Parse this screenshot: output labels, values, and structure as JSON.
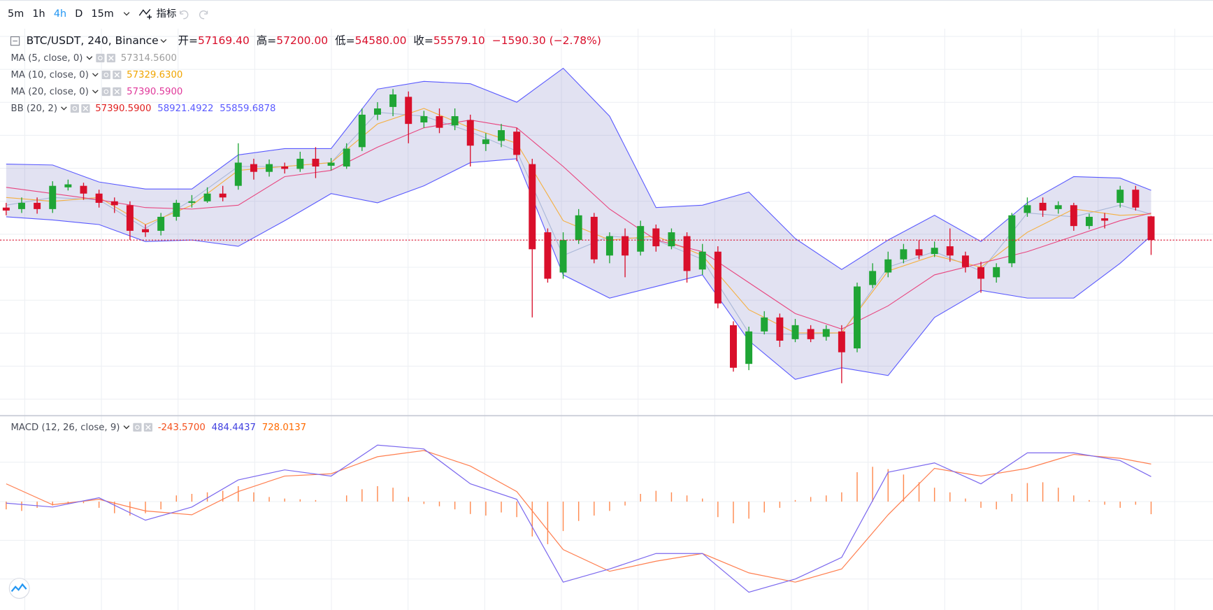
{
  "toolbar": {
    "intervals": [
      "5m",
      "1h",
      "4h",
      "D",
      "15m"
    ],
    "active_index": 2,
    "indicators": "指标"
  },
  "chart_data": [
    {
      "type": "candlestick",
      "title": "BTC/USDT, 240, Binance",
      "ohlc_legend": [
        {
          "label": "开=",
          "value": "57169.40"
        },
        {
          "label": "高=",
          "value": "57200.00"
        },
        {
          "label": "低=",
          "value": "54580.00"
        },
        {
          "label": "收=",
          "value": "55579.10"
        }
      ],
      "change": "−1590.30 (−2.78%)",
      "up_color": "#1fa535",
      "down_color": "#d90f2b",
      "last_price_line": true,
      "ylim": [
        43780,
        69780
      ],
      "open": [
        57760,
        57660,
        58080,
        57660,
        59120,
        59220,
        58700,
        58180,
        57920,
        56310,
        56200,
        57140,
        58080,
        58180,
        58700,
        59220,
        60680,
        60160,
        60520,
        60360,
        61040,
        60570,
        60520,
        61820,
        64000,
        64520,
        65200,
        63480,
        63900,
        63280,
        63640,
        62030,
        62240,
        62860,
        60680,
        56100,
        53400,
        55580,
        57140,
        54540,
        55840,
        54800,
        56360,
        55160,
        55840,
        53600,
        54800,
        49860,
        47260,
        49440,
        50380,
        48920,
        49600,
        49080,
        49440,
        48300,
        52560,
        53400,
        54280,
        54960,
        54640,
        55160,
        54540,
        53760,
        53080,
        54020,
        57400,
        58080,
        57660,
        57920,
        56520,
        57040,
        58080,
        58960,
        57169.4
      ],
      "high": [
        58080,
        58440,
        58440,
        59530,
        59640,
        59430,
        58960,
        58440,
        58180,
        56620,
        57400,
        58280,
        58600,
        59120,
        59220,
        62080,
        61040,
        60990,
        60780,
        61510,
        61820,
        61090,
        62080,
        64420,
        64840,
        65720,
        65560,
        64260,
        64420,
        64420,
        64000,
        62760,
        63380,
        63120,
        61040,
        56360,
        56100,
        57660,
        57400,
        56100,
        56360,
        56880,
        56620,
        56360,
        56100,
        55320,
        55160,
        50120,
        49760,
        50800,
        50640,
        50280,
        49860,
        49860,
        49860,
        52720,
        54020,
        54800,
        55320,
        55580,
        55480,
        56360,
        54800,
        54120,
        54020,
        57400,
        58440,
        58440,
        58180,
        58080,
        57350,
        57400,
        59220,
        59220,
        57200
      ],
      "low": [
        57240,
        57400,
        57350,
        57400,
        58910,
        58280,
        57760,
        57400,
        55580,
        55790,
        55890,
        56880,
        57760,
        58080,
        58180,
        58960,
        59640,
        59840,
        60050,
        60160,
        59740,
        60260,
        60360,
        61560,
        63640,
        63900,
        62080,
        63120,
        62760,
        62960,
        60520,
        61560,
        61820,
        60880,
        50380,
        52720,
        52980,
        55320,
        54020,
        54020,
        53080,
        54540,
        54800,
        54960,
        52720,
        53240,
        51000,
        46740,
        46840,
        49240,
        48400,
        48720,
        48720,
        48820,
        45960,
        48040,
        52360,
        53080,
        54020,
        54280,
        54440,
        54120,
        53400,
        52040,
        52720,
        53760,
        57140,
        57140,
        57350,
        56200,
        56310,
        56360,
        57760,
        57560,
        54580
      ],
      "close": [
        57560,
        58080,
        57660,
        59220,
        59320,
        58700,
        58080,
        57920,
        56200,
        56100,
        57140,
        58080,
        58180,
        58700,
        58440,
        60780,
        60160,
        60680,
        60360,
        61040,
        60520,
        60780,
        61720,
        64000,
        64420,
        65360,
        63380,
        63900,
        63120,
        63900,
        61920,
        62340,
        62960,
        61300,
        54960,
        52980,
        55580,
        57240,
        54280,
        55840,
        54540,
        56520,
        55160,
        56100,
        53500,
        54800,
        51320,
        47000,
        49440,
        50380,
        48820,
        49860,
        48920,
        49600,
        48040,
        52460,
        53500,
        54280,
        54960,
        54540,
        55060,
        54540,
        53760,
        52980,
        53760,
        57240,
        57920,
        57560,
        57920,
        56520,
        57140,
        56880,
        58960,
        57760,
        55579.1
      ],
      "overlays": [
        {
          "name": "MA (5, close, 0)",
          "color": "#aab8d8",
          "label_color": "#9e9e9e",
          "last_label": "57314.5600",
          "x": [
            0,
            3,
            6,
            9,
            12,
            15,
            18,
            21,
            24,
            27,
            30,
            33,
            36,
            39,
            42,
            45,
            48,
            51,
            54,
            57,
            60,
            63,
            66,
            69,
            72,
            74
          ],
          "values": [
            57920,
            58440,
            58280,
            56360,
            58280,
            60520,
            60520,
            60780,
            64160,
            63900,
            62860,
            61560,
            54540,
            55840,
            55580,
            54280,
            49340,
            49240,
            49340,
            53760,
            54800,
            53500,
            57400,
            57140,
            57920,
            57314.56
          ]
        },
        {
          "name": "MA (10, close, 0)",
          "color": "#f5b041",
          "label_color": "#f0a500",
          "last_label": "57329.6300",
          "x": [
            0,
            3,
            6,
            9,
            12,
            15,
            18,
            21,
            24,
            27,
            30,
            33,
            36,
            39,
            42,
            45,
            48,
            51,
            54,
            57,
            60,
            63,
            66,
            69,
            72,
            74
          ],
          "values": [
            58440,
            58180,
            58440,
            56620,
            57920,
            60260,
            60520,
            60780,
            63380,
            64420,
            63120,
            62080,
            56880,
            55580,
            55840,
            54540,
            50900,
            49340,
            49340,
            53500,
            54540,
            53760,
            56100,
            57660,
            57240,
            57329.63
          ]
        },
        {
          "name": "MA (20, close, 0)",
          "color": "#e8457f",
          "label_color": "#e0389a",
          "last_label": "57390.5900",
          "x": [
            0,
            3,
            6,
            9,
            12,
            15,
            18,
            21,
            24,
            27,
            30,
            33,
            36,
            39,
            42,
            45,
            48,
            51,
            54,
            57,
            60,
            63,
            66,
            69,
            72,
            74
          ],
          "values": [
            59120,
            58700,
            58280,
            57760,
            57660,
            57920,
            59840,
            60260,
            61820,
            63120,
            63640,
            63120,
            60520,
            57660,
            55580,
            54800,
            52720,
            50640,
            49600,
            51160,
            53240,
            54020,
            54800,
            55840,
            56880,
            57390.59
          ]
        }
      ],
      "bands": {
        "name": "BB (20, 2)",
        "basis_label": "57390.5900",
        "basis_label_color": "#e02020",
        "upper_label": "58921.4922",
        "lower_label": "55859.6878",
        "color": "#5a5aff",
        "fill": "rgba(110,110,190,0.2)",
        "x": [
          0,
          3,
          6,
          9,
          12,
          15,
          18,
          21,
          24,
          27,
          30,
          33,
          36,
          39,
          42,
          45,
          48,
          51,
          54,
          57,
          60,
          63,
          66,
          69,
          72,
          74
        ],
        "upper": [
          60680,
          60620,
          59480,
          59010,
          59010,
          61300,
          61720,
          61720,
          65720,
          66240,
          66080,
          64840,
          67120,
          63900,
          57760,
          57920,
          58800,
          55680,
          53600,
          55580,
          57240,
          55480,
          58080,
          59840,
          59740,
          58921.4922
        ],
        "lower": [
          57140,
          56930,
          56620,
          55480,
          55580,
          55160,
          56880,
          58700,
          58080,
          59220,
          60780,
          61040,
          53240,
          51680,
          52460,
          53240,
          48820,
          46220,
          47000,
          46480,
          50380,
          52200,
          51680,
          51680,
          54020,
          55859.6878
        ]
      }
    },
    {
      "type": "macd",
      "title": "MACD (12, 26, close, 9)",
      "ylim": [
        -2085,
        1620
      ],
      "hist_color": "#ff8a50",
      "histogram_label": "-243.5700",
      "histogram_label_color": "#f4511e",
      "histogram": [
        -150,
        -180,
        -120,
        -75,
        -45,
        -30,
        -120,
        -225,
        -270,
        -225,
        -150,
        120,
        150,
        180,
        210,
        300,
        180,
        90,
        60,
        45,
        30,
        0,
        120,
        240,
        300,
        270,
        90,
        -45,
        -90,
        -150,
        -240,
        -270,
        -210,
        -300,
        -675,
        -825,
        -570,
        -375,
        -270,
        -180,
        -75,
        150,
        210,
        180,
        120,
        60,
        -300,
        -420,
        -330,
        -210,
        -120,
        30,
        90,
        120,
        180,
        570,
        675,
        630,
        525,
        375,
        270,
        180,
        60,
        -120,
        -150,
        150,
        360,
        375,
        270,
        120,
        30,
        -60,
        -120,
        -60,
        -243.57
      ],
      "x": [
        0,
        3,
        6,
        9,
        12,
        15,
        18,
        21,
        24,
        27,
        30,
        33,
        36,
        39,
        42,
        45,
        48,
        51,
        54,
        57,
        60,
        63,
        66,
        69,
        72,
        74
      ],
      "macd_line": {
        "color": "#7b68ee",
        "label_color": "#3f3fdf",
        "last_label": "484.4437",
        "values": [
          -30,
          -105,
          75,
          -360,
          -105,
          420,
          615,
          495,
          1095,
          1020,
          345,
          45,
          -1560,
          -1305,
          -1005,
          -1005,
          -1755,
          -1500,
          -1080,
          570,
          750,
          345,
          945,
          945,
          795,
          484.4437
        ]
      },
      "signal_line": {
        "color": "#ff7f50",
        "label_color": "#ff6a00",
        "last_label": "728.0137",
        "values": [
          345,
          -60,
          45,
          -180,
          -255,
          195,
          495,
          540,
          870,
          990,
          690,
          195,
          -930,
          -1350,
          -1155,
          -1005,
          -1380,
          -1560,
          -1305,
          -255,
          645,
          495,
          645,
          915,
          840,
          728.0137
        ]
      }
    }
  ]
}
